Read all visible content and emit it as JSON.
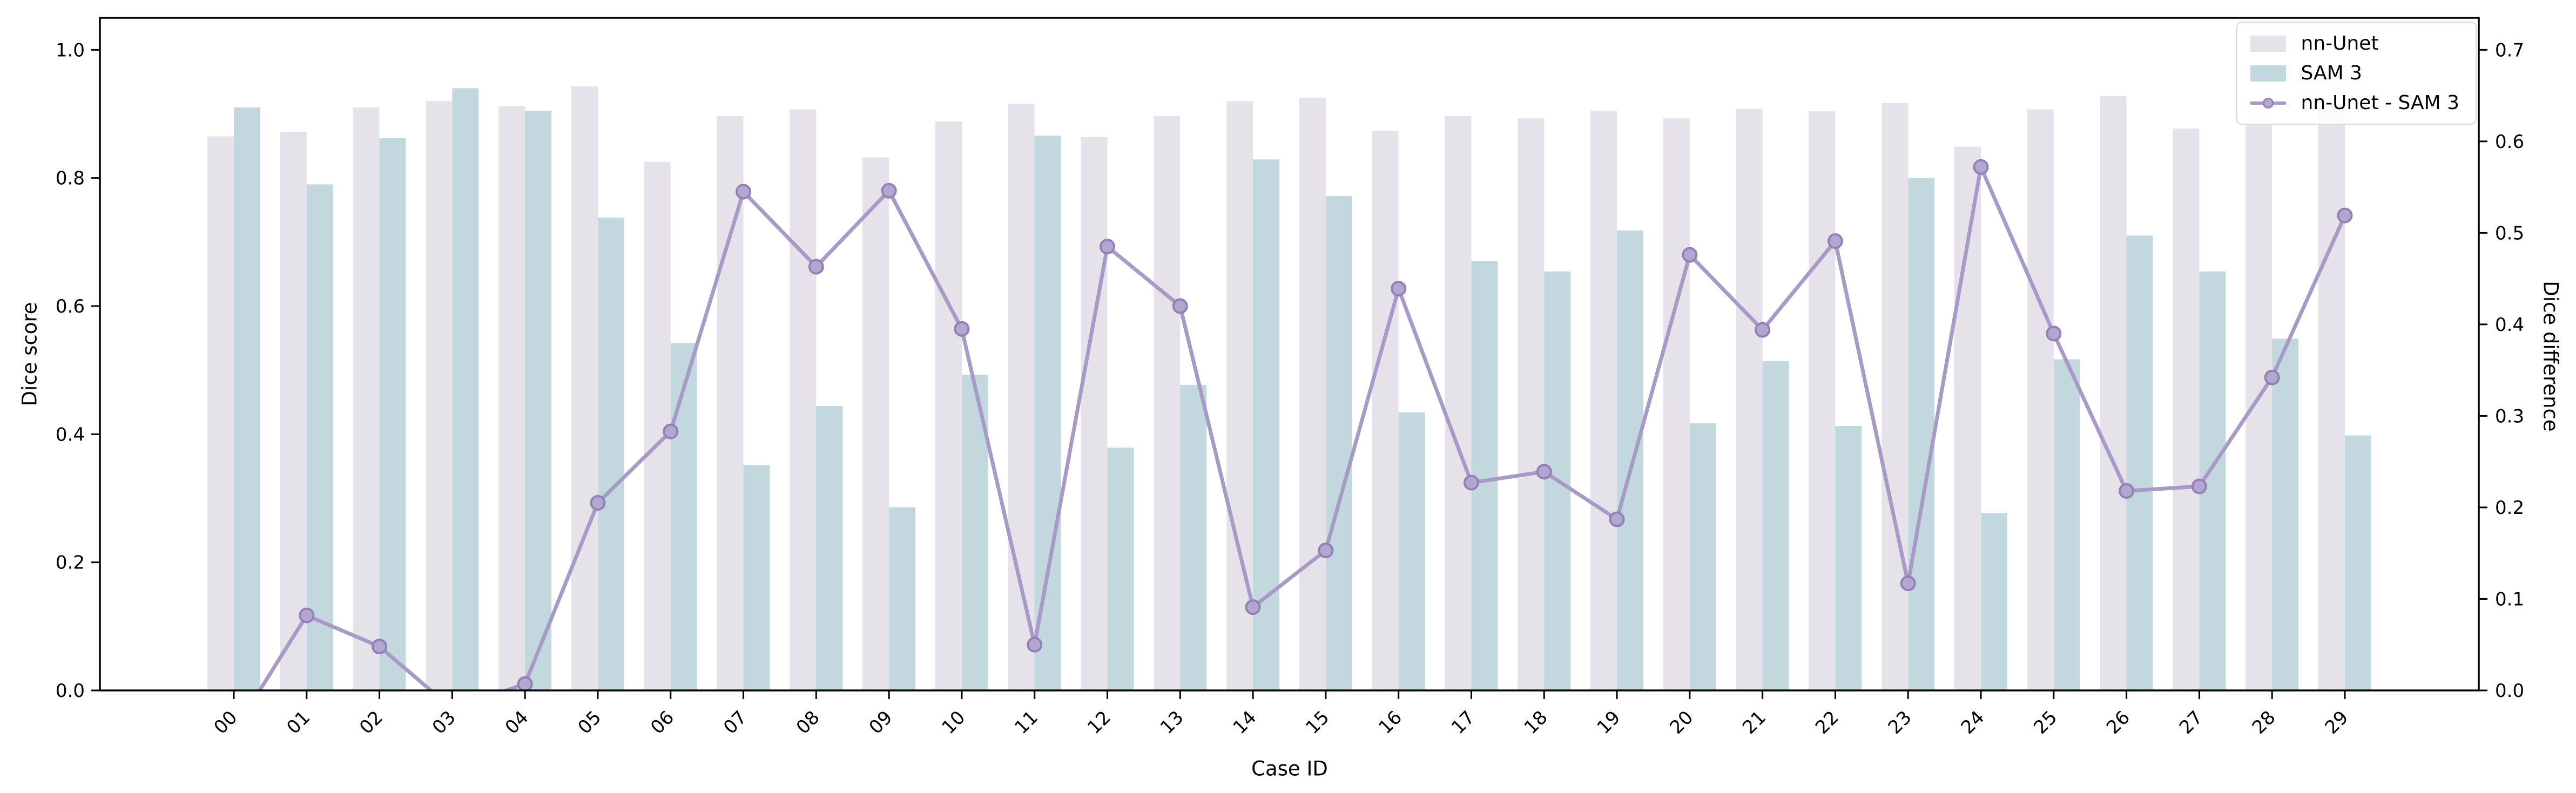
{
  "chart_data": {
    "type": "bar",
    "title": "",
    "xlabel": "Case ID",
    "ylabel_left": "Dice score",
    "ylabel_right": "Dice difference",
    "categories": [
      "00",
      "01",
      "02",
      "03",
      "04",
      "05",
      "06",
      "07",
      "08",
      "09",
      "10",
      "11",
      "12",
      "13",
      "14",
      "15",
      "16",
      "17",
      "18",
      "19",
      "20",
      "21",
      "22",
      "23",
      "24",
      "25",
      "26",
      "27",
      "28",
      "29"
    ],
    "series": [
      {
        "name": "nn-Unet",
        "axis": "left",
        "color": "#e5e3e9",
        "values": [
          0.865,
          0.872,
          0.91,
          0.92,
          0.912,
          0.943,
          0.825,
          0.897,
          0.907,
          0.832,
          0.888,
          0.916,
          0.864,
          0.897,
          0.92,
          0.925,
          0.873,
          0.897,
          0.893,
          0.905,
          0.893,
          0.908,
          0.904,
          0.917,
          0.849,
          0.907,
          0.928,
          0.877,
          0.891,
          0.917
        ]
      },
      {
        "name": "SAM 3",
        "axis": "left",
        "color": "#c2d8de",
        "values": [
          0.91,
          0.79,
          0.862,
          0.94,
          0.905,
          0.738,
          0.542,
          0.352,
          0.444,
          0.286,
          0.493,
          0.866,
          0.379,
          0.477,
          0.829,
          0.772,
          0.434,
          0.67,
          0.654,
          0.718,
          0.417,
          0.514,
          0.413,
          0.8,
          0.277,
          0.517,
          0.71,
          0.654,
          0.549,
          0.398
        ]
      }
    ],
    "line_series": {
      "name": "nn-Unet - SAM 3",
      "axis": "right",
      "color": "#a89ac6",
      "marker_fill": "#b3a6d1",
      "marker_edge": "#9181b6",
      "values": [
        -0.045,
        0.082,
        0.048,
        -0.02,
        0.007,
        0.205,
        0.283,
        0.545,
        0.463,
        0.546,
        0.395,
        0.05,
        0.485,
        0.42,
        0.091,
        0.153,
        0.439,
        0.227,
        0.239,
        0.187,
        0.476,
        0.394,
        0.491,
        0.117,
        0.572,
        0.39,
        0.218,
        0.223,
        0.342,
        0.519
      ]
    },
    "ylim_left": [
      0,
      1.05
    ],
    "ylim_right": [
      0,
      0.735
    ],
    "yticks_left": [
      "0.0",
      "0.2",
      "0.4",
      "0.6",
      "0.8",
      "1.0"
    ],
    "yticks_right": [
      "0.0",
      "0.1",
      "0.2",
      "0.3",
      "0.4",
      "0.5",
      "0.6",
      "0.7"
    ],
    "legend_position": "upper right",
    "grid": false,
    "axis_color": "#000000",
    "tick_label_color": "#000000"
  }
}
